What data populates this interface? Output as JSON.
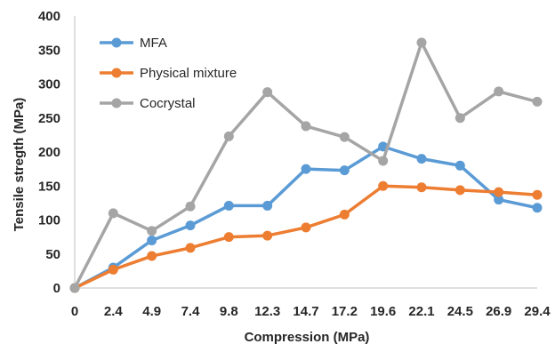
{
  "chart_data": {
    "type": "line",
    "categories": [
      "0",
      "2.4",
      "4.9",
      "7.4",
      "9.8",
      "12.3",
      "14.7",
      "17.2",
      "19.6",
      "22.1",
      "24.5",
      "26.9",
      "29.4"
    ],
    "series": [
      {
        "name": "MFA",
        "color": "#5B9BD5",
        "values": [
          0,
          30,
          70,
          92,
          121,
          121,
          175,
          173,
          208,
          190,
          180,
          130,
          118
        ]
      },
      {
        "name": "Physical mixture",
        "color": "#ED7D31",
        "values": [
          0,
          27,
          47,
          59,
          75,
          77,
          89,
          108,
          150,
          148,
          144,
          141,
          137
        ]
      },
      {
        "name": "Cocrystal",
        "color": "#A5A5A5",
        "values": [
          0,
          110,
          84,
          120,
          223,
          288,
          238,
          222,
          187,
          361,
          250,
          289,
          274
        ]
      }
    ],
    "title": "",
    "xlabel": "Compression (MPa)",
    "ylabel": "Tensile stregth (MPa)",
    "ylim": [
      0,
      400
    ],
    "yticks": [
      0,
      50,
      100,
      150,
      200,
      250,
      300,
      350,
      400
    ],
    "grid": false,
    "legend": "top-left"
  }
}
